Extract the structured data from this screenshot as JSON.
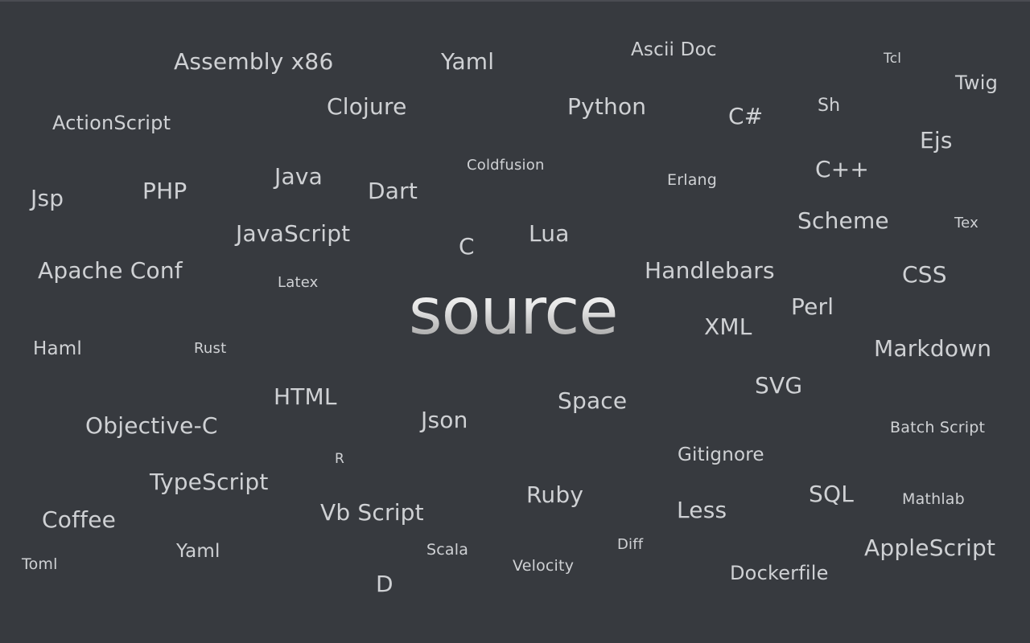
{
  "logo": {
    "open": "{",
    "text": "source",
    "close": "}"
  },
  "languages": [
    "Assembly x86",
    "Yaml",
    "Ascii Doc",
    "Tcl",
    "Twig",
    "ActionScript",
    "Clojure",
    "Python",
    "C#",
    "Sh",
    "Ejs",
    "Coldfusion",
    "Erlang",
    "C++",
    "Jsp",
    "PHP",
    "Java",
    "Dart",
    "Scheme",
    "Tex",
    "JavaScript",
    "C",
    "Lua",
    "Apache Conf",
    "Latex",
    "Handlebars",
    "CSS",
    "Perl",
    "XML",
    "Haml",
    "Rust",
    "Markdown",
    "SVG",
    "HTML",
    "Space",
    "Objective-C",
    "Json",
    "Batch Script",
    "R",
    "Gitignore",
    "TypeScript",
    "Ruby",
    "SQL",
    "Mathlab",
    "Less",
    "Coffee",
    "Vb Script",
    "AppleScript",
    "Yaml",
    "Scala",
    "Diff",
    "Toml",
    "Velocity",
    "Dockerfile",
    "D"
  ],
  "colors": {
    "background": "#373a3f",
    "text": "#cfd1d4"
  }
}
